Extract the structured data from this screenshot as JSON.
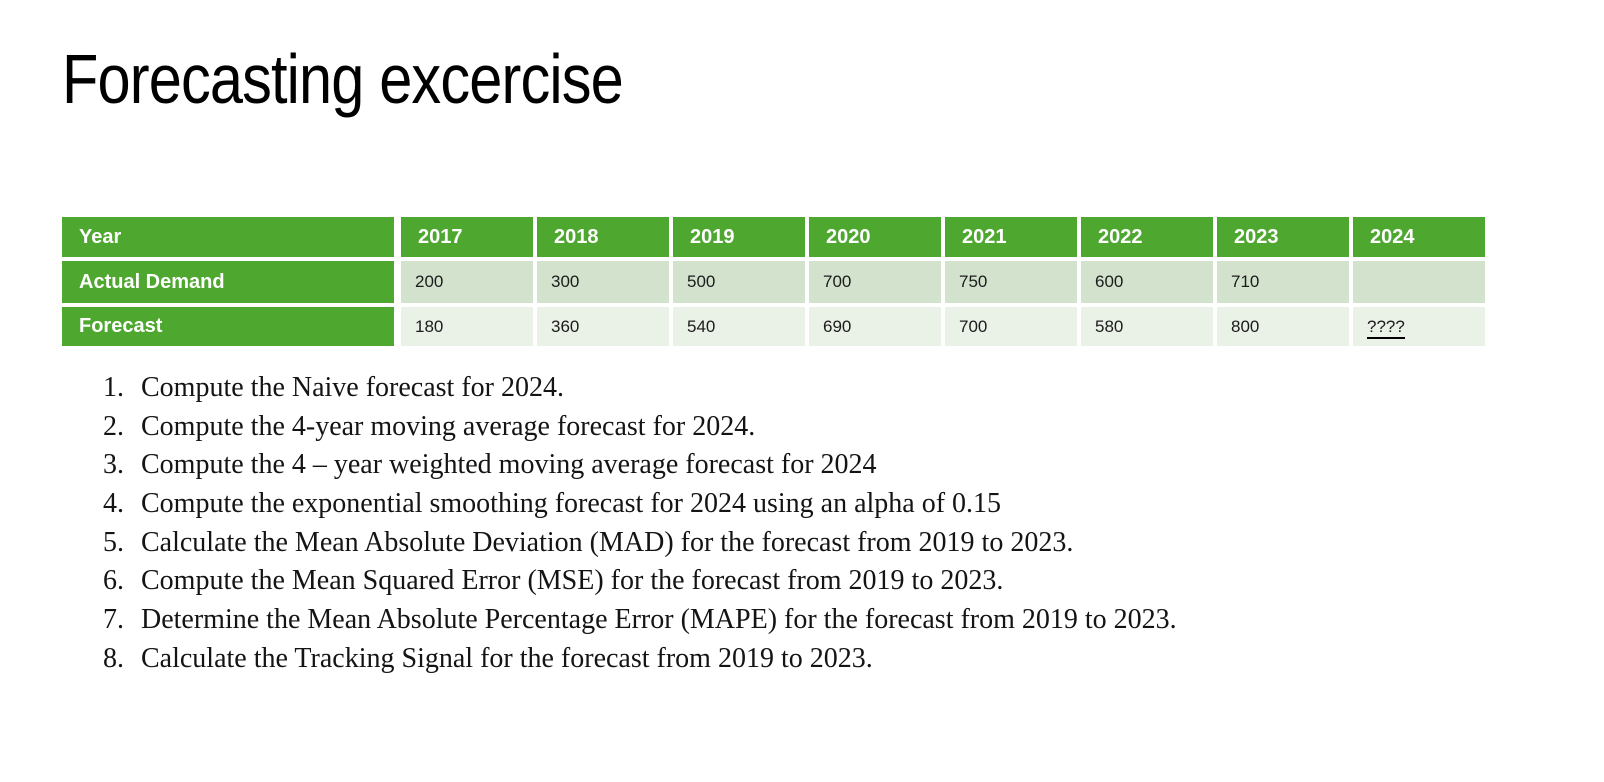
{
  "title": "Forecasting excercise",
  "table": {
    "header": {
      "label": "Year",
      "years": [
        "2017",
        "2018",
        "2019",
        "2020",
        "2021",
        "2022",
        "2023",
        "2024"
      ]
    },
    "rows": [
      {
        "label": "Actual Demand",
        "values": [
          "200",
          "300",
          "500",
          "700",
          "750",
          "600",
          "710",
          ""
        ]
      },
      {
        "label": "Forecast",
        "values": [
          "180",
          "360",
          "540",
          "690",
          "700",
          "580",
          "800",
          "????"
        ]
      }
    ],
    "colors": {
      "header_green": "#4EA72E",
      "band_dark": "#D2E2CD",
      "band_light": "#EAF1E7"
    }
  },
  "questions": [
    {
      "num": "1.",
      "text": "Compute the Naive forecast for 2024."
    },
    {
      "num": "2.",
      "text": "Compute the 4-year moving average forecast for 2024."
    },
    {
      "num": "3.",
      "text": "Compute the 4 – year weighted moving average forecast for 2024"
    },
    {
      "num": "4.",
      "text": "Compute the exponential smoothing forecast for 2024 using an alpha of 0.15"
    },
    {
      "num": "5.",
      "text": "Calculate the Mean Absolute Deviation (MAD) for the forecast from 2019 to 2023."
    },
    {
      "num": "6.",
      "text": "Compute the Mean Squared Error (MSE) for the forecast from 2019 to 2023."
    },
    {
      "num": "7.",
      "text": "Determine the Mean Absolute Percentage Error (MAPE) for the forecast from 2019 to 2023."
    },
    {
      "num": "8.",
      "text": "Calculate the Tracking Signal for the forecast from 2019 to 2023."
    }
  ]
}
